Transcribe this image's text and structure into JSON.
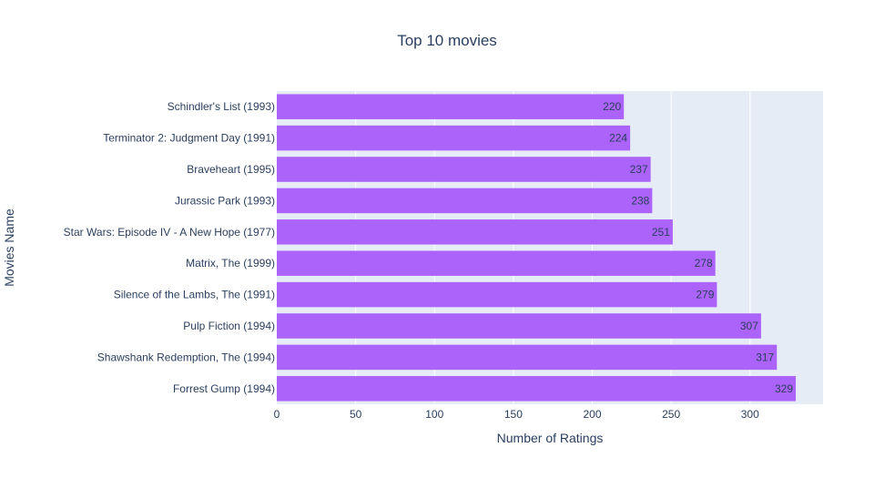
{
  "chart_data": {
    "type": "bar",
    "orientation": "horizontal",
    "title": "Top 10 movies",
    "xlabel": "Number of Ratings",
    "ylabel": "Movies Name",
    "categories": [
      "Schindler's List (1993)",
      "Terminator 2: Judgment Day (1991)",
      "Braveheart (1995)",
      "Jurassic Park (1993)",
      "Star Wars: Episode IV - A New Hope (1977)",
      "Matrix, The (1999)",
      "Silence of the Lambs, The (1991)",
      "Pulp Fiction (1994)",
      "Shawshank Redemption, The (1994)",
      "Forrest Gump (1994)"
    ],
    "values": [
      220,
      224,
      237,
      238,
      251,
      278,
      279,
      307,
      317,
      329
    ],
    "xlim": [
      0,
      346.3
    ],
    "xticks": [
      0,
      50,
      100,
      150,
      200,
      250,
      300
    ],
    "grid": true,
    "legend": "none",
    "colors": {
      "bar": "#ab63fa",
      "plot_bg": "#e5ecf6",
      "grid": "#ffffff",
      "text": "#2a3f5f"
    }
  }
}
